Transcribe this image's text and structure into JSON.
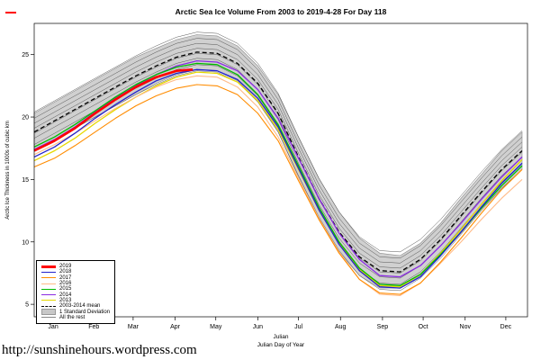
{
  "footer": {
    "link": "http://sunshinehours.wordpress.com"
  },
  "chart_data": {
    "type": "line",
    "title": "Arctic Sea Ice Volume From 2003 to 2019-4-28  For Day 118",
    "ylabel": "Arctic Ice Thickness in 1000s of cubic km",
    "xlabel_line1": "Julian",
    "xlabel_line2": "Julian Day of Year",
    "ylim": [
      4,
      27.5
    ],
    "yticks": [
      5,
      10,
      15,
      20,
      25
    ],
    "grid": false,
    "legend_position": "bottom-left",
    "month_labels": [
      "Jan",
      "Feb",
      "Mar",
      "Apr",
      "May",
      "Jun",
      "Jul",
      "Aug",
      "Sep",
      "Oct",
      "Nov",
      "Dec"
    ],
    "month_tick_days": [
      15,
      45,
      74,
      105,
      135,
      166,
      196,
      227,
      258,
      288,
      319,
      349
    ],
    "days": [
      1,
      16,
      31,
      46,
      61,
      76,
      91,
      106,
      121,
      136,
      151,
      166,
      181,
      196,
      211,
      226,
      241,
      256,
      271,
      286,
      301,
      316,
      331,
      346,
      361
    ],
    "band": {
      "name": "1 Standard Deviation",
      "color": "#c8c8c8",
      "edge": "#8a8a8a",
      "upper": [
        20.3,
        21.2,
        22.1,
        23.0,
        23.9,
        24.8,
        25.5,
        26.2,
        26.6,
        26.5,
        25.7,
        24.1,
        21.8,
        18.4,
        15.1,
        12.4,
        10.3,
        9.1,
        8.9,
        9.9,
        11.5,
        13.5,
        15.4,
        17.3,
        18.8
      ],
      "lower": [
        17.3,
        18.2,
        19.1,
        20.0,
        20.9,
        21.8,
        22.7,
        23.4,
        23.8,
        23.7,
        22.9,
        21.3,
        18.8,
        15.2,
        11.9,
        9.2,
        7.3,
        6.3,
        6.3,
        7.3,
        8.9,
        10.7,
        12.6,
        14.3,
        15.8
      ]
    },
    "mean": {
      "name": "2003-2014 mean",
      "color": "#000000",
      "width": 1.3,
      "dash": "5,3",
      "values": [
        18.8,
        19.7,
        20.6,
        21.5,
        22.4,
        23.3,
        24.1,
        24.8,
        25.2,
        25.1,
        24.3,
        22.7,
        20.3,
        16.8,
        13.5,
        10.8,
        8.8,
        7.7,
        7.6,
        8.6,
        10.2,
        12.1,
        14.0,
        15.8,
        17.3
      ]
    },
    "series": [
      {
        "name": "2019",
        "color": "#ff0000",
        "width": 2.6,
        "days": [
          1,
          16,
          31,
          46,
          61,
          76,
          91,
          106,
          118
        ],
        "values": [
          17.3,
          18.1,
          19.1,
          20.3,
          21.4,
          22.4,
          23.2,
          23.7,
          23.8
        ]
      },
      {
        "name": "2018",
        "color": "#2222cc",
        "width": 1.3,
        "values": [
          16.8,
          17.6,
          18.7,
          19.9,
          21.0,
          22.0,
          22.9,
          23.5,
          23.8,
          23.7,
          23.0,
          21.5,
          19.2,
          15.9,
          12.6,
          9.8,
          7.7,
          6.4,
          6.3,
          7.2,
          8.9,
          10.8,
          12.8,
          14.7,
          16.3
        ]
      },
      {
        "name": "2017",
        "color": "#ff8c00",
        "width": 1.1,
        "values": [
          16.0,
          16.7,
          17.7,
          18.8,
          19.9,
          20.9,
          21.7,
          22.3,
          22.6,
          22.5,
          21.8,
          20.3,
          18.1,
          14.9,
          11.8,
          9.1,
          7.0,
          5.9,
          5.8,
          6.7,
          8.4,
          10.3,
          12.3,
          14.2,
          15.8
        ]
      },
      {
        "name": "2016",
        "color": "#ffbb88",
        "width": 1.1,
        "values": [
          17.0,
          17.8,
          18.7,
          19.7,
          20.7,
          21.6,
          22.4,
          23.0,
          23.3,
          23.2,
          22.4,
          20.8,
          18.4,
          15.1,
          11.9,
          9.2,
          7.0,
          5.8,
          5.7,
          6.7,
          8.3,
          10.0,
          11.8,
          13.5,
          15.0
        ]
      },
      {
        "name": "2015",
        "color": "#00bb00",
        "width": 1.3,
        "values": [
          17.6,
          18.4,
          19.4,
          20.5,
          21.6,
          22.6,
          23.4,
          24.0,
          24.3,
          24.2,
          23.4,
          21.8,
          19.4,
          16.1,
          12.8,
          10.0,
          7.9,
          6.6,
          6.5,
          7.4,
          9.0,
          10.8,
          12.7,
          14.5,
          16.1
        ]
      },
      {
        "name": "2014",
        "color": "#8a2be2",
        "width": 1.3,
        "values": [
          17.4,
          18.2,
          19.2,
          20.4,
          21.5,
          22.5,
          23.4,
          24.1,
          24.5,
          24.4,
          23.7,
          22.2,
          19.9,
          16.7,
          13.5,
          10.7,
          8.6,
          7.3,
          7.2,
          8.1,
          9.7,
          11.5,
          13.4,
          15.2,
          16.8
        ]
      },
      {
        "name": "2013",
        "color": "#e6d800",
        "width": 1.3,
        "values": [
          16.5,
          17.3,
          18.3,
          19.5,
          20.6,
          21.6,
          22.5,
          23.2,
          23.6,
          23.5,
          22.8,
          21.3,
          19.0,
          15.8,
          12.6,
          9.9,
          7.8,
          6.5,
          6.4,
          7.4,
          9.1,
          11.0,
          13.0,
          14.9,
          16.6
        ]
      }
    ],
    "rest": {
      "name": "All the rest",
      "color": "#555555",
      "width": 0.5,
      "lines": [
        [
          20.4,
          21.3,
          22.2,
          23.1,
          24.0,
          24.9,
          25.7,
          26.4,
          26.8,
          26.7,
          25.9,
          24.3,
          21.9,
          18.4,
          15.1,
          12.4,
          10.4,
          9.3,
          9.2,
          10.2,
          11.8,
          13.7,
          15.6,
          17.4,
          18.9
        ],
        [
          19.9,
          20.8,
          21.7,
          22.6,
          23.5,
          24.4,
          25.2,
          25.9,
          26.3,
          26.2,
          25.4,
          23.8,
          21.4,
          17.9,
          14.6,
          11.9,
          9.9,
          8.8,
          8.7,
          9.7,
          11.3,
          13.2,
          15.1,
          16.9,
          18.4
        ],
        [
          19.5,
          20.4,
          21.3,
          22.2,
          23.1,
          24.0,
          24.8,
          25.5,
          25.9,
          25.8,
          25.0,
          23.4,
          21.0,
          17.5,
          14.2,
          11.5,
          9.5,
          8.4,
          8.3,
          9.3,
          10.9,
          12.8,
          14.7,
          16.5,
          18.0
        ],
        [
          19.1,
          20.0,
          20.9,
          21.8,
          22.7,
          23.6,
          24.4,
          25.1,
          25.5,
          25.4,
          24.6,
          23.0,
          20.6,
          17.1,
          13.8,
          11.1,
          9.1,
          8.0,
          7.9,
          8.9,
          10.5,
          12.4,
          14.3,
          16.1,
          17.6
        ],
        [
          18.7,
          19.6,
          20.5,
          21.4,
          22.3,
          23.2,
          24.0,
          24.7,
          25.1,
          25.0,
          24.2,
          22.6,
          20.2,
          16.7,
          13.4,
          10.7,
          8.7,
          7.6,
          7.5,
          8.5,
          10.1,
          12.0,
          13.9,
          15.7,
          17.2
        ],
        [
          18.3,
          19.2,
          20.1,
          21.0,
          21.9,
          22.8,
          23.6,
          24.3,
          24.7,
          24.6,
          23.8,
          22.2,
          19.8,
          16.3,
          13.0,
          10.3,
          8.3,
          7.2,
          7.1,
          8.1,
          9.7,
          11.6,
          13.5,
          15.3,
          16.8
        ],
        [
          17.8,
          18.7,
          19.6,
          20.5,
          21.4,
          22.3,
          23.1,
          23.8,
          24.2,
          24.1,
          23.3,
          21.7,
          19.3,
          15.8,
          12.5,
          9.8,
          7.8,
          6.7,
          6.6,
          7.6,
          9.2,
          11.1,
          13.0,
          14.8,
          16.3
        ],
        [
          17.3,
          18.2,
          19.1,
          20.0,
          20.9,
          21.8,
          22.6,
          23.3,
          23.7,
          23.6,
          22.8,
          21.2,
          18.8,
          15.3,
          12.0,
          9.3,
          7.3,
          6.2,
          6.1,
          7.1,
          8.7,
          10.6,
          12.5,
          14.3,
          15.8
        ]
      ]
    },
    "legend": [
      {
        "label": "2019",
        "type": "line",
        "color": "#ff0000",
        "width": 3
      },
      {
        "label": "2018",
        "type": "line",
        "color": "#2222cc",
        "width": 1.5
      },
      {
        "label": "2017",
        "type": "line",
        "color": "#ff8c00",
        "width": 1.5
      },
      {
        "label": "2016",
        "type": "line",
        "color": "#ffbb88",
        "width": 1.5
      },
      {
        "label": "2015",
        "type": "line",
        "color": "#00bb00",
        "width": 1.5
      },
      {
        "label": "2014",
        "type": "line",
        "color": "#8a2be2",
        "width": 1.5
      },
      {
        "label": "2013",
        "type": "line",
        "color": "#e6d800",
        "width": 1.5
      },
      {
        "label": "2003-2014 mean",
        "type": "dash",
        "color": "#000000",
        "width": 1.5
      },
      {
        "label": "1 Standard Deviation",
        "type": "box",
        "color": "#c8c8c8"
      },
      {
        "label": "All the rest",
        "type": "line",
        "color": "#888888",
        "width": 1
      }
    ]
  }
}
